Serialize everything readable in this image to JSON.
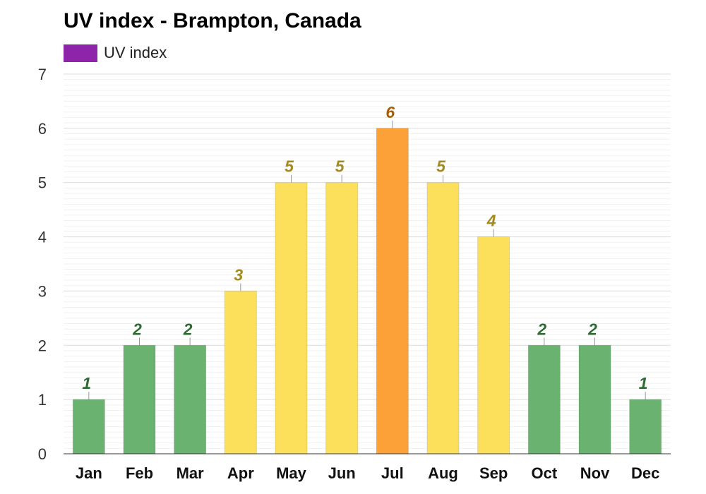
{
  "chart_data": {
    "type": "bar",
    "title": "UV index - Brampton, Canada",
    "legend": {
      "label": "UV index",
      "color": "#8e24aa",
      "placement": "top-left"
    },
    "categories": [
      "Jan",
      "Feb",
      "Mar",
      "Apr",
      "May",
      "Jun",
      "Jul",
      "Aug",
      "Sep",
      "Oct",
      "Nov",
      "Dec"
    ],
    "series": [
      {
        "name": "UV index",
        "values": [
          1,
          2,
          2,
          3,
          5,
          5,
          6,
          5,
          4,
          2,
          2,
          1
        ],
        "data_labels": [
          "1",
          "2",
          "2",
          "3",
          "5",
          "5",
          "6",
          "5",
          "4",
          "2",
          "2",
          "1"
        ]
      }
    ],
    "ylim": [
      0,
      7
    ],
    "yticks": [
      "0",
      "1",
      "2",
      "3",
      "4",
      "5",
      "6",
      "7"
    ],
    "grid": true,
    "colors": {
      "low_bar": "#6ab26f",
      "moderate_bar": "#fce05b",
      "high_bar": "#fca137",
      "low_label": "#2e6b32",
      "moderate_label": "#a38b1e",
      "high_label": "#a85c07"
    }
  }
}
